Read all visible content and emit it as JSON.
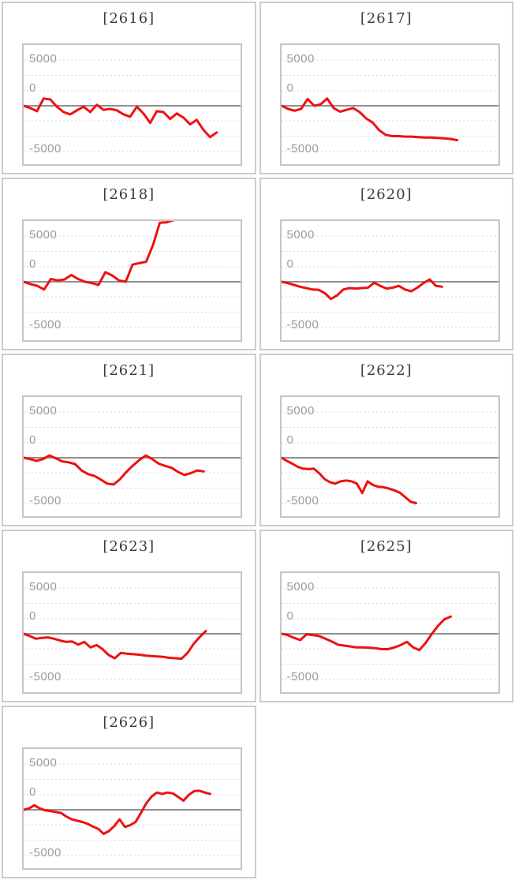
{
  "page": {
    "background": "#ffffff",
    "grid_columns": 2
  },
  "colors": {
    "series": "#ee1111",
    "zero_line": "#8f8f8f",
    "grid_line": "#d9d9d9",
    "plot_border": "#c5c5c5",
    "cell_border": "#cccccc",
    "tick_label": "#9b9b9b",
    "title": "#3b3b3b",
    "background": "#ffffff"
  },
  "axis": {
    "tick_labels": [
      "5000",
      "0",
      "-5000"
    ],
    "tick_values": [
      5000,
      0,
      -5000
    ],
    "ylim": [
      -6500,
      6600
    ],
    "grid": "dotted horizontal lines, solid line at zero",
    "legend": "none"
  },
  "chart_data": [
    {
      "type": "line",
      "title": "[2616]",
      "width_frac": 0.89,
      "values": [
        0,
        -250,
        -600,
        800,
        700,
        -100,
        -700,
        -950,
        -500,
        -100,
        -700,
        100,
        -450,
        -350,
        -500,
        -950,
        -1200,
        -100,
        -850,
        -1900,
        -600,
        -700,
        -1450,
        -850,
        -1300,
        -2050,
        -1550,
        -2650,
        -3450,
        -2950
      ]
    },
    {
      "type": "line",
      "title": "[2617]",
      "width_frac": 0.81,
      "values": [
        0,
        -350,
        -550,
        -350,
        750,
        0,
        150,
        800,
        -250,
        -650,
        -450,
        -250,
        -700,
        -1400,
        -1850,
        -2700,
        -3200,
        -3350,
        -3350,
        -3400,
        -3400,
        -3450,
        -3500,
        -3500,
        -3550,
        -3600,
        -3650,
        -3800
      ]
    },
    {
      "type": "line",
      "title": "[2618]",
      "width_frac": 0.91,
      "values": [
        0,
        -250,
        -450,
        -850,
        300,
        150,
        250,
        750,
        300,
        0,
        -150,
        -350,
        1050,
        700,
        150,
        0,
        1900,
        2050,
        2200,
        4050,
        6500,
        6550,
        6800,
        6850,
        6850,
        6850,
        6850,
        6850,
        6850,
        6850
      ]
    },
    {
      "type": "line",
      "title": "[2620]",
      "width_frac": 0.74,
      "values": [
        0,
        -150,
        -350,
        -550,
        -700,
        -850,
        -900,
        -1250,
        -1900,
        -1500,
        -850,
        -700,
        -750,
        -700,
        -650,
        -100,
        -450,
        -750,
        -650,
        -450,
        -850,
        -1050,
        -650,
        -150,
        250,
        -450,
        -550
      ]
    },
    {
      "type": "line",
      "title": "[2621]",
      "width_frac": 0.83,
      "values": [
        0,
        -150,
        -350,
        -150,
        250,
        -50,
        -400,
        -500,
        -700,
        -1400,
        -1800,
        -2000,
        -2400,
        -2850,
        -2950,
        -2350,
        -1550,
        -850,
        -250,
        250,
        -150,
        -650,
        -900,
        -1100,
        -1550,
        -1900,
        -1700,
        -1400,
        -1500
      ]
    },
    {
      "type": "line",
      "title": "[2622]",
      "width_frac": 0.62,
      "values": [
        0,
        -350,
        -650,
        -1000,
        -1200,
        -1250,
        -1200,
        -1700,
        -2350,
        -2700,
        -2850,
        -2600,
        -2500,
        -2600,
        -2850,
        -3900,
        -2600,
        -3000,
        -3200,
        -3250,
        -3400,
        -3600,
        -3850,
        -4350,
        -4850,
        -5000
      ]
    },
    {
      "type": "line",
      "title": "[2623]",
      "width_frac": 0.84,
      "values": [
        0,
        -250,
        -550,
        -450,
        -400,
        -550,
        -750,
        -900,
        -850,
        -1200,
        -900,
        -1500,
        -1250,
        -1700,
        -2350,
        -2700,
        -2100,
        -2200,
        -2250,
        -2300,
        -2400,
        -2450,
        -2500,
        -2550,
        -2650,
        -2700,
        -2750,
        -2100,
        -1100,
        -350,
        300
      ]
    },
    {
      "type": "line",
      "title": "[2625]",
      "width_frac": 0.78,
      "values": [
        0,
        -150,
        -450,
        -700,
        -50,
        -150,
        -250,
        -550,
        -850,
        -1200,
        -1300,
        -1400,
        -1500,
        -1500,
        -1550,
        -1600,
        -1700,
        -1700,
        -1500,
        -1250,
        -900,
        -1500,
        -1800,
        -1000,
        0,
        900,
        1600,
        1900
      ]
    },
    {
      "type": "line",
      "title": "[2626]",
      "width_frac": 0.86,
      "values": [
        0,
        150,
        500,
        150,
        -50,
        -150,
        -250,
        -350,
        -750,
        -1050,
        -1200,
        -1350,
        -1550,
        -1850,
        -2100,
        -2650,
        -2350,
        -1800,
        -1050,
        -1900,
        -1700,
        -1350,
        -350,
        700,
        1450,
        1900,
        1750,
        1900,
        1800,
        1400,
        1000,
        1650,
        2050,
        2100,
        1900,
        1750
      ]
    }
  ]
}
